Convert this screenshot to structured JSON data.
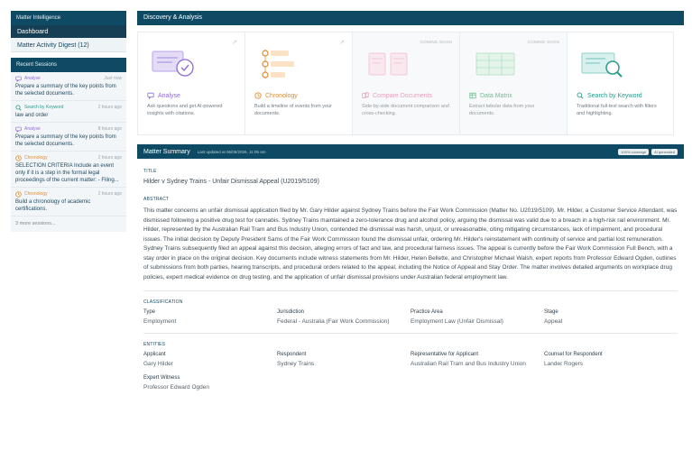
{
  "sidebar": {
    "header": "Matter Intelligence",
    "nav": [
      {
        "label": "Dashboard"
      },
      {
        "label": "Matter Activity Digest (12)"
      }
    ],
    "recent_header": "Recent Sessions",
    "sessions": [
      {
        "type": "Analyse",
        "time": "Just now",
        "text": "Prepare a summary of the key points from the selected documents.",
        "color": "#8e6bd6",
        "icon": "chat-icon"
      },
      {
        "type": "Search by Keyword",
        "time": "2 hours ago",
        "text": "law and order",
        "color": "#2a9a8b",
        "icon": "search-icon"
      },
      {
        "type": "Analyse",
        "time": "8 hours ago",
        "text": "Prepare a summary of the key points from the selected documents.",
        "color": "#8e6bd6",
        "icon": "chat-icon"
      },
      {
        "type": "Chronology",
        "time": "2 hours ago",
        "text": "SELECTION CRITERIA Include an event only if it is a step in the formal legal proceedings of the current matter: - Filing...",
        "color": "#e08a2c",
        "icon": "clock-icon"
      },
      {
        "type": "Chronology",
        "time": "2 hours ago",
        "text": "Build a chronology of academic certifications.",
        "color": "#e08a2c",
        "icon": "clock-icon"
      }
    ],
    "more": "3 more sessions..."
  },
  "discovery": {
    "title": "Discovery & Analysis",
    "cards": [
      {
        "title": "Analyse",
        "desc": "Ask questions and get AI-powered insights with citations.",
        "soon": "",
        "color": "#8e6bd6",
        "icon": "chat-icon"
      },
      {
        "title": "Chronology",
        "desc": "Build a timeline of events from your documents.",
        "soon": "",
        "color": "#e08a2c",
        "icon": "clock-icon"
      },
      {
        "title": "Compare Documents",
        "desc": "Side-by-side document comparison and cross-checking.",
        "soon": "COMING SOON",
        "color": "#e07fa6",
        "icon": "compare-icon"
      },
      {
        "title": "Data Matrix",
        "desc": "Extract tabular data from your documents.",
        "soon": "COMING SOON",
        "color": "#3fae6a",
        "icon": "table-icon"
      },
      {
        "title": "Search by Keyword",
        "desc": "Traditional full-text search with filters and highlighting.",
        "soon": "",
        "color": "#2a9a8b",
        "icon": "search-icon"
      }
    ]
  },
  "summary": {
    "title": "Matter Summary",
    "updated": "Last updated at 06/05/2026, 11:05 am",
    "badges": [
      "100% coverage",
      "AI generated"
    ],
    "title_label": "TITLE",
    "title_value": "Hilder v Sydney Trains - Unfair Dismissal Appeal (U2019/5109)",
    "abstract_label": "ABSTRACT",
    "abstract": "This matter concerns an unfair dismissal application filed by Mr. Gary Hilder against Sydney Trains before the Fair Work Commission (Matter No. U2019/5109). Mr. Hilder, a Customer Service Attendant, was dismissed following a positive drug test for cannabis. Sydney Trains maintained a zero-tolerance drug and alcohol policy, arguing the dismissal was valid due to a breach in a high-risk rail environment. Mr. Hilder, represented by the Australian Rail Tram and Bus Industry Union, contended the dismissal was harsh, unjust, or unreasonable, citing mitigating circumstances, lack of impairment, and procedural issues. The initial decision by Deputy President Sams of the Fair Work Commission found the dismissal unfair, ordering Mr. Hilder's reinstatement with continuity of service and partial lost remuneration. Sydney Trains subsequently filed an appeal against this decision, alleging errors of fact and law, and procedural fairness issues. The appeal is currently before the Fair Work Commission Full Bench, with a stay order in place on the original decision. Key documents include witness statements from Mr. Hilder, Helen Bellette, and Christopher Michael Walsh, expert reports from Professor Edward Ogden, outlines of submissions from both parties, hearing transcripts, and procedural orders related to the appeal, including the Notice of Appeal and Stay Order. The matter involves detailed arguments on workplace drug policies, expert medical evidence on drug testing, and the application of unfair dismissal provisions under Australian federal employment law.",
    "classification_label": "CLASSIFICATION",
    "classification": [
      {
        "k": "Type",
        "v": "Employment"
      },
      {
        "k": "Jurisdiction",
        "v": "Federal - Australia (Fair Work Commission)"
      },
      {
        "k": "Practice Area",
        "v": "Employment Law (Unfair Dismissal)"
      },
      {
        "k": "Stage",
        "v": "Appeal"
      }
    ],
    "entities_label": "ENTITIES",
    "entities": [
      {
        "k": "Applicant",
        "v": "Gary Hilder"
      },
      {
        "k": "Respondent",
        "v": "Sydney Trains"
      },
      {
        "k": "Representative for Applicant",
        "v": "Australian Rail Tram and Bus Industry Union"
      },
      {
        "k": "Counsel for Respondent",
        "v": "Lander Rogers"
      }
    ],
    "entities2": [
      {
        "k": "Expert Witness",
        "v": "Professor Edward Ogden"
      }
    ]
  }
}
